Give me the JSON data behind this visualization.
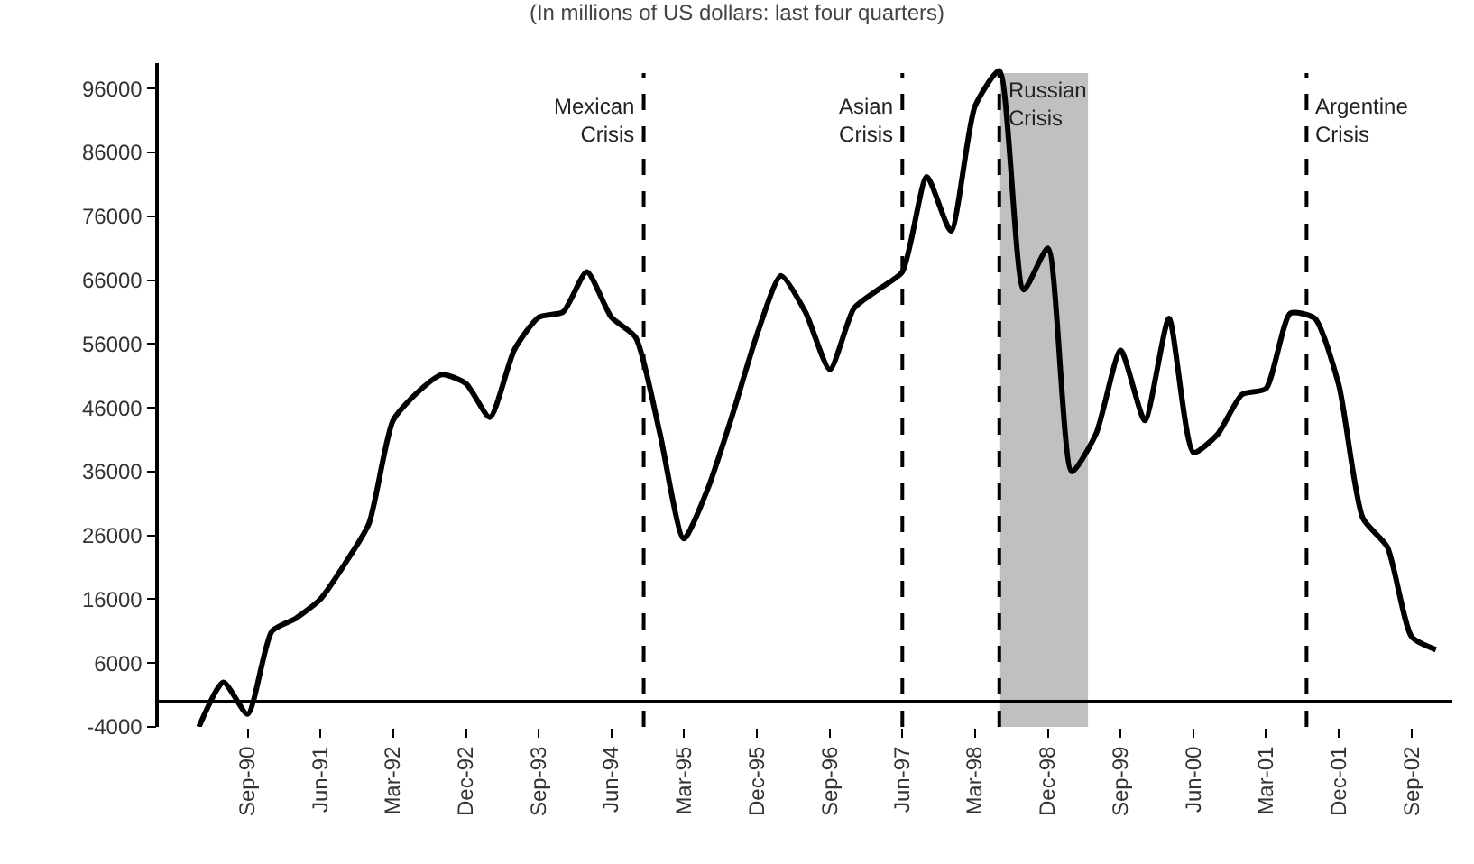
{
  "chart_data": {
    "type": "line",
    "title": "(In millions of US dollars: last four quarters)",
    "x": [
      "1990-03",
      "1990-06",
      "1990-09",
      "1990-12",
      "1991-03",
      "1991-06",
      "1991-09",
      "1991-12",
      "1992-03",
      "1992-06",
      "1992-09",
      "1992-12",
      "1993-03",
      "1993-06",
      "1993-09",
      "1993-12",
      "1994-03",
      "1994-06",
      "1994-09",
      "1994-12",
      "1995-03",
      "1995-06",
      "1995-09",
      "1995-12",
      "1996-03",
      "1996-06",
      "1996-09",
      "1996-12",
      "1997-03",
      "1997-06",
      "1997-09",
      "1997-12",
      "1998-03",
      "1998-06",
      "1998-09",
      "1998-12",
      "1999-03",
      "1999-06",
      "1999-09",
      "1999-12",
      "2000-03",
      "2000-06",
      "2000-09",
      "2000-12",
      "2001-03",
      "2001-06",
      "2001-09",
      "2001-12",
      "2002-03",
      "2002-06",
      "2002-09",
      "2002-12"
    ],
    "series": [
      {
        "color": "#000000",
        "values": [
          -4000,
          3000,
          -2000,
          11000,
          13000,
          16000,
          21500,
          27800,
          44000,
          48400,
          51200,
          49800,
          44500,
          55100,
          60200,
          61000,
          67300,
          60200,
          57000,
          42000,
          25500,
          33500,
          45000,
          57400,
          66700,
          61000,
          52000,
          61600,
          64500,
          67300,
          82200,
          73700,
          93200,
          98800,
          64500,
          71000,
          36000,
          42000,
          55000,
          44000,
          60000,
          39000,
          41900,
          48100,
          49000,
          60800,
          60000,
          49500,
          28700,
          24200,
          10100,
          8100
        ]
      }
    ],
    "xlim": [
      "1989-10",
      "2003-02"
    ],
    "xticks": [
      {
        "value": "1990-09",
        "label": "Sep-90"
      },
      {
        "value": "1991-06",
        "label": "Jun-91"
      },
      {
        "value": "1992-03",
        "label": "Mar-92"
      },
      {
        "value": "1992-12",
        "label": "Dec-92"
      },
      {
        "value": "1993-09",
        "label": "Sep-93"
      },
      {
        "value": "1994-06",
        "label": "Jun-94"
      },
      {
        "value": "1995-03",
        "label": "Mar-95"
      },
      {
        "value": "1995-12",
        "label": "Dec-95"
      },
      {
        "value": "1996-09",
        "label": "Sep-96"
      },
      {
        "value": "1997-06",
        "label": "Jun-97"
      },
      {
        "value": "1998-03",
        "label": "Mar-98"
      },
      {
        "value": "1998-12",
        "label": "Dec-98"
      },
      {
        "value": "1999-09",
        "label": "Sep-99"
      },
      {
        "value": "2000-06",
        "label": "Jun-00"
      },
      {
        "value": "2001-03",
        "label": "Mar-01"
      },
      {
        "value": "2001-12",
        "label": "Dec-01"
      },
      {
        "value": "2002-09",
        "label": "Sep-02"
      }
    ],
    "ylim": [
      -4000,
      100000
    ],
    "yticks": [
      -4000,
      6000,
      16000,
      26000,
      36000,
      46000,
      56000,
      66000,
      76000,
      86000,
      96000
    ],
    "ref_lines": [
      {
        "axis": "x",
        "value": "1994-10",
        "label": "Mexican\nCrisis",
        "line_style": "dashed",
        "color": "#000000"
      },
      {
        "axis": "x",
        "value": "1997-06",
        "label": "Asian\nCrisis",
        "line_style": "dashed",
        "color": "#000000"
      },
      {
        "axis": "x",
        "value": "1998-06",
        "line_style": "dashed",
        "color": "#000000"
      },
      {
        "axis": "x",
        "value": "2001-08",
        "label": "Argentine\nCrisis",
        "line_style": "dashed",
        "color": "#000000"
      }
    ],
    "bands": [
      {
        "axis": "x",
        "from": "1998-06",
        "to": "1999-05",
        "label": "Russian\nCrisis",
        "color": "#c0c0c0"
      }
    ],
    "grid": false,
    "marker": "none",
    "line_style": "solid"
  }
}
